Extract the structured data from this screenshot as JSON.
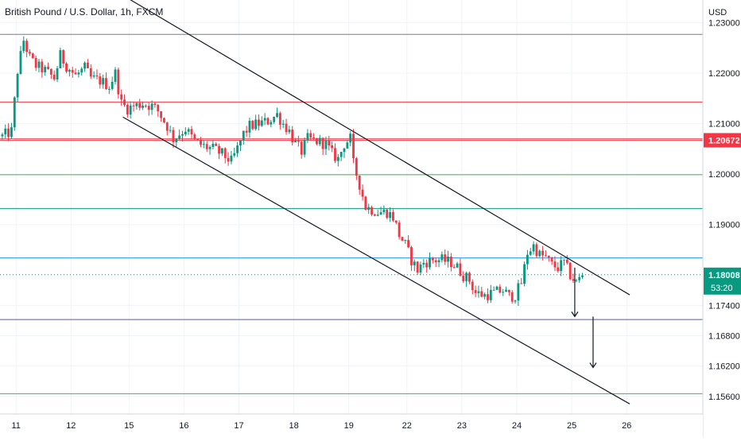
{
  "chart_data": {
    "type": "candlestick",
    "title": "British Pound / U.S. Dollar, 1h, FXCM",
    "currency": "USD",
    "ylim": [
      1.1525,
      1.2345
    ],
    "y_ticks": [
      "1.23000",
      "1.22000",
      "1.21000",
      "1.20000",
      "1.19000",
      "1.17400",
      "1.16800",
      "1.16200",
      "1.15600"
    ],
    "y_tick_values": [
      1.23,
      1.22,
      1.21,
      1.2,
      1.19,
      1.174,
      1.168,
      1.162,
      1.156
    ],
    "x_labels": [
      "11",
      "12",
      "15",
      "16",
      "17",
      "18",
      "19",
      "22",
      "23",
      "24",
      "25",
      "26"
    ],
    "x_label_bars": [
      5,
      23,
      42,
      60,
      78,
      96,
      114,
      133,
      151,
      169,
      187,
      205
    ],
    "bars_visible": 186,
    "current_price": "1.18008",
    "current_price_value": 1.18008,
    "countdown": "53:20",
    "red_line_label": "1.20672",
    "horizontal_lines": [
      {
        "price": 1.2277,
        "color": "#787b86"
      },
      {
        "price": 1.2143,
        "color": "#f23645"
      },
      {
        "price": 1.207,
        "color": "#f23645"
      },
      {
        "price": 1.2067,
        "color": "#f23645"
      },
      {
        "price": 1.1999,
        "color": "#4caf50"
      },
      {
        "price": 1.1932,
        "color": "#089981"
      },
      {
        "price": 1.1834,
        "color": "#2196f3"
      },
      {
        "price": 1.1712,
        "color": "#5b5b96"
      },
      {
        "price": 1.1565,
        "color": "#4caf50"
      }
    ],
    "trend_lines": [
      {
        "from": [
          42,
          1.2347
        ],
        "to": [
          206,
          1.1761
        ]
      },
      {
        "from": [
          40,
          1.2113
        ],
        "to": [
          206,
          1.1545
        ]
      }
    ],
    "arrows": [
      {
        "bar": 188,
        "from": 1.1815,
        "to": 1.1718
      },
      {
        "bar": 194,
        "from": 1.1718,
        "to": 1.1617
      }
    ],
    "path": [
      [
        0,
        1.2075
      ],
      [
        3,
        1.2085
      ],
      [
        5,
        1.2205
      ],
      [
        7,
        1.2265
      ],
      [
        9,
        1.223
      ],
      [
        11,
        1.2215
      ],
      [
        14,
        1.2205
      ],
      [
        17,
        1.219
      ],
      [
        19,
        1.2235
      ],
      [
        21,
        1.2215
      ],
      [
        24,
        1.2195
      ],
      [
        27,
        1.221
      ],
      [
        29,
        1.219
      ],
      [
        32,
        1.2185
      ],
      [
        35,
        1.2175
      ],
      [
        37,
        1.22
      ],
      [
        39,
        1.214
      ],
      [
        41,
        1.213
      ],
      [
        43,
        1.2135
      ],
      [
        46,
        1.214
      ],
      [
        49,
        1.2135
      ],
      [
        51,
        1.2125
      ],
      [
        54,
        1.2095
      ],
      [
        56,
        1.207
      ],
      [
        58,
        1.208
      ],
      [
        60,
        1.209
      ],
      [
        63,
        1.2065
      ],
      [
        66,
        1.2055
      ],
      [
        69,
        1.205
      ],
      [
        72,
        1.204
      ],
      [
        75,
        1.2025
      ],
      [
        77,
        1.205
      ],
      [
        79,
        1.208
      ],
      [
        81,
        1.2095
      ],
      [
        84,
        1.21
      ],
      [
        87,
        1.2105
      ],
      [
        90,
        1.2118
      ],
      [
        92,
        1.21
      ],
      [
        94,
        1.2085
      ],
      [
        96,
        1.206
      ],
      [
        98,
        1.2045
      ],
      [
        100,
        1.207
      ],
      [
        103,
        1.2065
      ],
      [
        106,
        1.206
      ],
      [
        108,
        1.204
      ],
      [
        110,
        1.203
      ],
      [
        112,
        1.206
      ],
      [
        114,
        1.207
      ],
      [
        115,
        1.202
      ],
      [
        117,
        1.198
      ],
      [
        119,
        1.1935
      ],
      [
        121,
        1.193
      ],
      [
        123,
        1.1925
      ],
      [
        126,
        1.1925
      ],
      [
        128,
        1.1915
      ],
      [
        130,
        1.188
      ],
      [
        132,
        1.186
      ],
      [
        134,
        1.183
      ],
      [
        136,
        1.181
      ],
      [
        138,
        1.1825
      ],
      [
        141,
        1.183
      ],
      [
        144,
        1.183
      ],
      [
        147,
        1.1825
      ],
      [
        149,
        1.1815
      ],
      [
        151,
        1.18
      ],
      [
        153,
        1.179
      ],
      [
        155,
        1.1765
      ],
      [
        158,
        1.176
      ],
      [
        161,
        1.1765
      ],
      [
        164,
        1.177
      ],
      [
        166,
        1.1758
      ],
      [
        168,
        1.176
      ],
      [
        170,
        1.1785
      ],
      [
        172,
        1.1845
      ],
      [
        174,
        1.1858
      ],
      [
        176,
        1.184
      ],
      [
        178,
        1.1835
      ],
      [
        180,
        1.182
      ],
      [
        182,
        1.1815
      ],
      [
        184,
        1.1825
      ],
      [
        186,
        1.18
      ],
      [
        188,
        1.1785
      ],
      [
        190,
        1.1801
      ]
    ],
    "closes": []
  }
}
